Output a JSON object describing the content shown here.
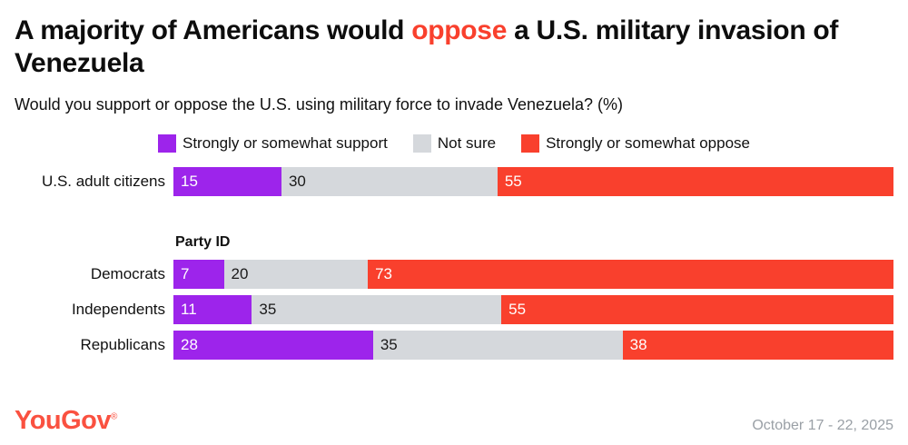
{
  "header": {
    "title_pre": "A majority of Americans would ",
    "title_highlight": "oppose",
    "title_post": " a U.S. military invasion of Venezuela",
    "subtitle": "Would you support or oppose the U.S. using military force to invade Venezuela? (%)"
  },
  "colors": {
    "support": "#9d24eb",
    "not_sure": "#d5d8dc",
    "oppose": "#f9402d",
    "title_highlight": "#f9402d",
    "logo": "#fa5140",
    "date_text": "#9aa0a6",
    "segment_text": [
      "#ffffff",
      "#1a1a1a",
      "#ffffff"
    ]
  },
  "legend": [
    {
      "label": "Strongly or somewhat support",
      "color_key": "support"
    },
    {
      "label": "Not sure",
      "color_key": "not_sure"
    },
    {
      "label": "Strongly or somewhat oppose",
      "color_key": "oppose"
    }
  ],
  "chart_data": {
    "type": "bar",
    "stacked": true,
    "orientation": "horizontal",
    "title": "A majority of Americans would oppose a U.S. military invasion of Venezuela",
    "xlabel": "",
    "ylabel": "",
    "xlim": [
      0,
      100
    ],
    "grid": false,
    "legend_position": "top",
    "series_names": [
      "Strongly or somewhat support",
      "Not sure",
      "Strongly or somewhat oppose"
    ],
    "groups": [
      {
        "section": "",
        "rows": [
          {
            "label": "U.S. adult citizens",
            "values": [
              15,
              30,
              55
            ]
          }
        ]
      },
      {
        "section": "Party ID",
        "rows": [
          {
            "label": "Democrats",
            "values": [
              7,
              20,
              73
            ]
          },
          {
            "label": "Independents",
            "values": [
              11,
              35,
              55
            ]
          },
          {
            "label": "Republicans",
            "values": [
              28,
              35,
              38
            ]
          }
        ]
      }
    ]
  },
  "footer": {
    "logo": "YouGov",
    "reg": "®",
    "date": "October 17 - 22, 2025"
  }
}
